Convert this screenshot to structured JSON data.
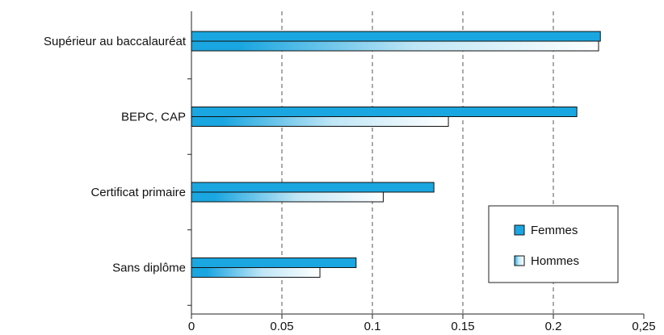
{
  "chart_data": {
    "type": "bar",
    "orientation": "horizontal",
    "title": "",
    "xlabel": "",
    "ylabel": "",
    "categories": [
      "Supérieur au baccalauréat",
      "BEPC, CAP",
      "Certificat primaire",
      "Sans diplôme"
    ],
    "series": [
      {
        "name": "Femmes",
        "values": [
          0.226,
          0.213,
          0.134,
          0.091
        ],
        "color": "#1aa6e0"
      },
      {
        "name": "Hommes",
        "values": [
          0.225,
          0.142,
          0.106,
          0.071
        ],
        "color": "#ffffff"
      }
    ],
    "xlim": [
      0,
      0.25
    ],
    "xticks": [
      {
        "value": 0,
        "label": "0"
      },
      {
        "value": 0.05,
        "label": "0.05"
      },
      {
        "value": 0.1,
        "label": "0.1"
      },
      {
        "value": 0.15,
        "label": "0.15"
      },
      {
        "value": 0.2,
        "label": "0.2"
      },
      {
        "value": 0.25,
        "label": "0,25"
      }
    ],
    "grid": "vertical-dashed",
    "legend_position": "right"
  }
}
